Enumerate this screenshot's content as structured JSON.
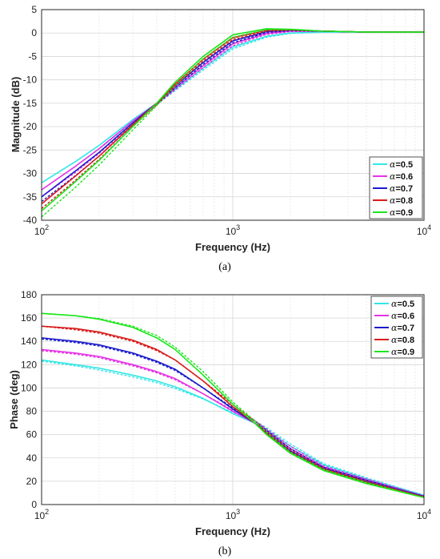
{
  "charts": [
    {
      "caption": "(a)",
      "type": "line",
      "xlabel": "Frequency (Hz)",
      "ylabel": "Magnitude (dB)",
      "xscale": "log",
      "xlim": [
        100,
        10000
      ],
      "ylim": [
        -40,
        5
      ],
      "yticks": [
        "-40",
        "-35",
        "-30",
        "-25",
        "-20",
        "-15",
        "-10",
        "-5",
        "0",
        "5"
      ],
      "grid": true,
      "legend_position": "bottom-right"
    },
    {
      "caption": "(b)",
      "type": "line",
      "xlabel": "Frequency (Hz)",
      "ylabel": "Phase (deg)",
      "xscale": "log",
      "xlim": [
        100,
        10000
      ],
      "ylim": [
        0,
        180
      ],
      "yticks": [
        "0",
        "20",
        "40",
        "60",
        "80",
        "100",
        "120",
        "140",
        "160",
        "180"
      ],
      "grid": true,
      "legend_position": "top-right"
    }
  ],
  "x_ticks": [
    {
      "base": "10",
      "exp": "2"
    },
    {
      "base": "10",
      "exp": "3"
    },
    {
      "base": "10",
      "exp": "4"
    }
  ],
  "legend": [
    {
      "symbol": "α",
      "label": "=0.5",
      "color": "#33e6e6"
    },
    {
      "symbol": "α",
      "label": "=0.6",
      "color": "#e633e6"
    },
    {
      "symbol": "α",
      "label": "=0.7",
      "color": "#1a1acc"
    },
    {
      "symbol": "α",
      "label": "=0.8",
      "color": "#d91a1a"
    },
    {
      "symbol": "α",
      "label": "=0.9",
      "color": "#1ae61a"
    }
  ],
  "chart_data": [
    {
      "type": "line",
      "title": "",
      "xlabel": "Frequency (Hz)",
      "ylabel": "Magnitude (dB)",
      "x": [
        100,
        150,
        200,
        300,
        400,
        500,
        700,
        1000,
        1500,
        2000,
        3000,
        5000,
        10000
      ],
      "series": [
        {
          "name": "α=0.5",
          "color": "#33e6e6",
          "style": "solid",
          "values": [
            -32,
            -27.5,
            -24,
            -18.5,
            -15,
            -12,
            -7.5,
            -3,
            -0.7,
            0,
            0.2,
            0.2,
            0.2
          ]
        },
        {
          "name": "α=0.5",
          "color": "#33e6e6",
          "style": "dashed",
          "values": [
            -33.5,
            -28.5,
            -24.8,
            -19,
            -15.3,
            -12.3,
            -7.9,
            -3.4,
            -0.9,
            -0.1,
            0.2,
            0.2,
            0.2
          ]
        },
        {
          "name": "α=0.6",
          "color": "#e633e6",
          "style": "solid",
          "values": [
            -33.5,
            -28.5,
            -24.7,
            -18.8,
            -15,
            -11.7,
            -7,
            -2.3,
            -0.1,
            0.4,
            0.4,
            0.2,
            0.2
          ]
        },
        {
          "name": "α=0.6",
          "color": "#e633e6",
          "style": "dashed",
          "values": [
            -35,
            -29.8,
            -25.7,
            -19.5,
            -15.3,
            -12.1,
            -7.4,
            -2.7,
            -0.3,
            0.3,
            0.4,
            0.2,
            0.2
          ]
        },
        {
          "name": "α=0.7",
          "color": "#1a1acc",
          "style": "solid",
          "values": [
            -35,
            -29.5,
            -25.5,
            -19.2,
            -15,
            -11.3,
            -6.3,
            -1.7,
            0.3,
            0.6,
            0.4,
            0.2,
            0.2
          ]
        },
        {
          "name": "α=0.7",
          "color": "#1a1acc",
          "style": "dashed",
          "values": [
            -36,
            -30.5,
            -26.3,
            -19.7,
            -15.3,
            -11.7,
            -6.7,
            -2.1,
            0.1,
            0.5,
            0.4,
            0.2,
            0.2
          ]
        },
        {
          "name": "α=0.8",
          "color": "#d91a1a",
          "style": "solid",
          "values": [
            -36.5,
            -30.6,
            -26.3,
            -19.6,
            -15,
            -10.9,
            -5.6,
            -1,
            0.6,
            0.7,
            0.4,
            0.2,
            0.2
          ]
        },
        {
          "name": "α=0.8",
          "color": "#d91a1a",
          "style": "dashed",
          "values": [
            -37.5,
            -31.5,
            -27,
            -20,
            -15.3,
            -11.3,
            -6,
            -1.4,
            0.4,
            0.6,
            0.4,
            0.2,
            0.2
          ]
        },
        {
          "name": "α=0.9",
          "color": "#1ae61a",
          "style": "solid",
          "values": [
            -38,
            -31.8,
            -27.2,
            -20,
            -15,
            -10.5,
            -5,
            -0.4,
            0.9,
            0.8,
            0.4,
            0.2,
            0.2
          ]
        },
        {
          "name": "α=0.9",
          "color": "#1ae61a",
          "style": "dashed",
          "values": [
            -39.3,
            -33,
            -28.2,
            -20.7,
            -15.5,
            -11.2,
            -5.5,
            -0.9,
            0.7,
            0.7,
            0.4,
            0.2,
            0.2
          ]
        }
      ]
    },
    {
      "type": "line",
      "title": "",
      "xlabel": "Frequency (Hz)",
      "ylabel": "Phase (deg)",
      "x": [
        100,
        150,
        200,
        300,
        400,
        500,
        700,
        1000,
        1300,
        1500,
        2000,
        3000,
        5000,
        10000
      ],
      "series": [
        {
          "name": "α=0.5",
          "color": "#33e6e6",
          "style": "solid",
          "values": [
            124,
            120,
            117,
            111,
            106,
            101,
            91,
            78,
            70,
            64,
            50,
            34,
            22,
            8
          ]
        },
        {
          "name": "α=0.5",
          "color": "#33e6e6",
          "style": "dashed",
          "values": [
            123,
            119,
            115.5,
            109.5,
            104.5,
            99.5,
            90.5,
            79,
            72,
            66,
            52,
            35,
            23,
            8
          ]
        },
        {
          "name": "α=0.6",
          "color": "#e633e6",
          "style": "solid",
          "values": [
            133,
            130,
            127,
            120,
            114,
            108,
            95,
            80,
            70,
            63,
            48,
            32,
            21,
            7
          ]
        },
        {
          "name": "α=0.6",
          "color": "#e633e6",
          "style": "dashed",
          "values": [
            132,
            129,
            126,
            119,
            113,
            107,
            95,
            81,
            72,
            65,
            50,
            33,
            22,
            7.5
          ]
        },
        {
          "name": "α=0.7",
          "color": "#1a1acc",
          "style": "solid",
          "values": [
            143,
            140,
            137,
            130,
            123,
            116,
            100,
            82,
            70,
            62,
            46,
            31,
            20,
            7
          ]
        },
        {
          "name": "α=0.7",
          "color": "#1a1acc",
          "style": "dashed",
          "values": [
            142,
            139,
            136,
            129,
            122,
            115,
            100,
            83,
            72,
            64,
            48,
            32,
            21,
            7
          ]
        },
        {
          "name": "α=0.8",
          "color": "#d91a1a",
          "style": "solid",
          "values": [
            153,
            151,
            148,
            141,
            133,
            124,
            106,
            84,
            70,
            61,
            45,
            30,
            19,
            6.5
          ]
        },
        {
          "name": "α=0.8",
          "color": "#d91a1a",
          "style": "dashed",
          "values": [
            153,
            150,
            147,
            140,
            132,
            124,
            106,
            86,
            72,
            63,
            47,
            31,
            20,
            6.5
          ]
        },
        {
          "name": "α=0.9",
          "color": "#1ae61a",
          "style": "solid",
          "values": [
            164,
            162,
            159,
            152,
            143,
            133,
            111,
            86,
            70,
            60,
            44,
            29,
            18,
            6
          ]
        },
        {
          "name": "α=0.9",
          "color": "#1ae61a",
          "style": "dashed",
          "values": [
            164,
            162,
            159.5,
            153,
            145,
            135,
            114,
            88,
            72,
            62,
            45,
            30,
            19,
            6
          ]
        }
      ]
    }
  ]
}
